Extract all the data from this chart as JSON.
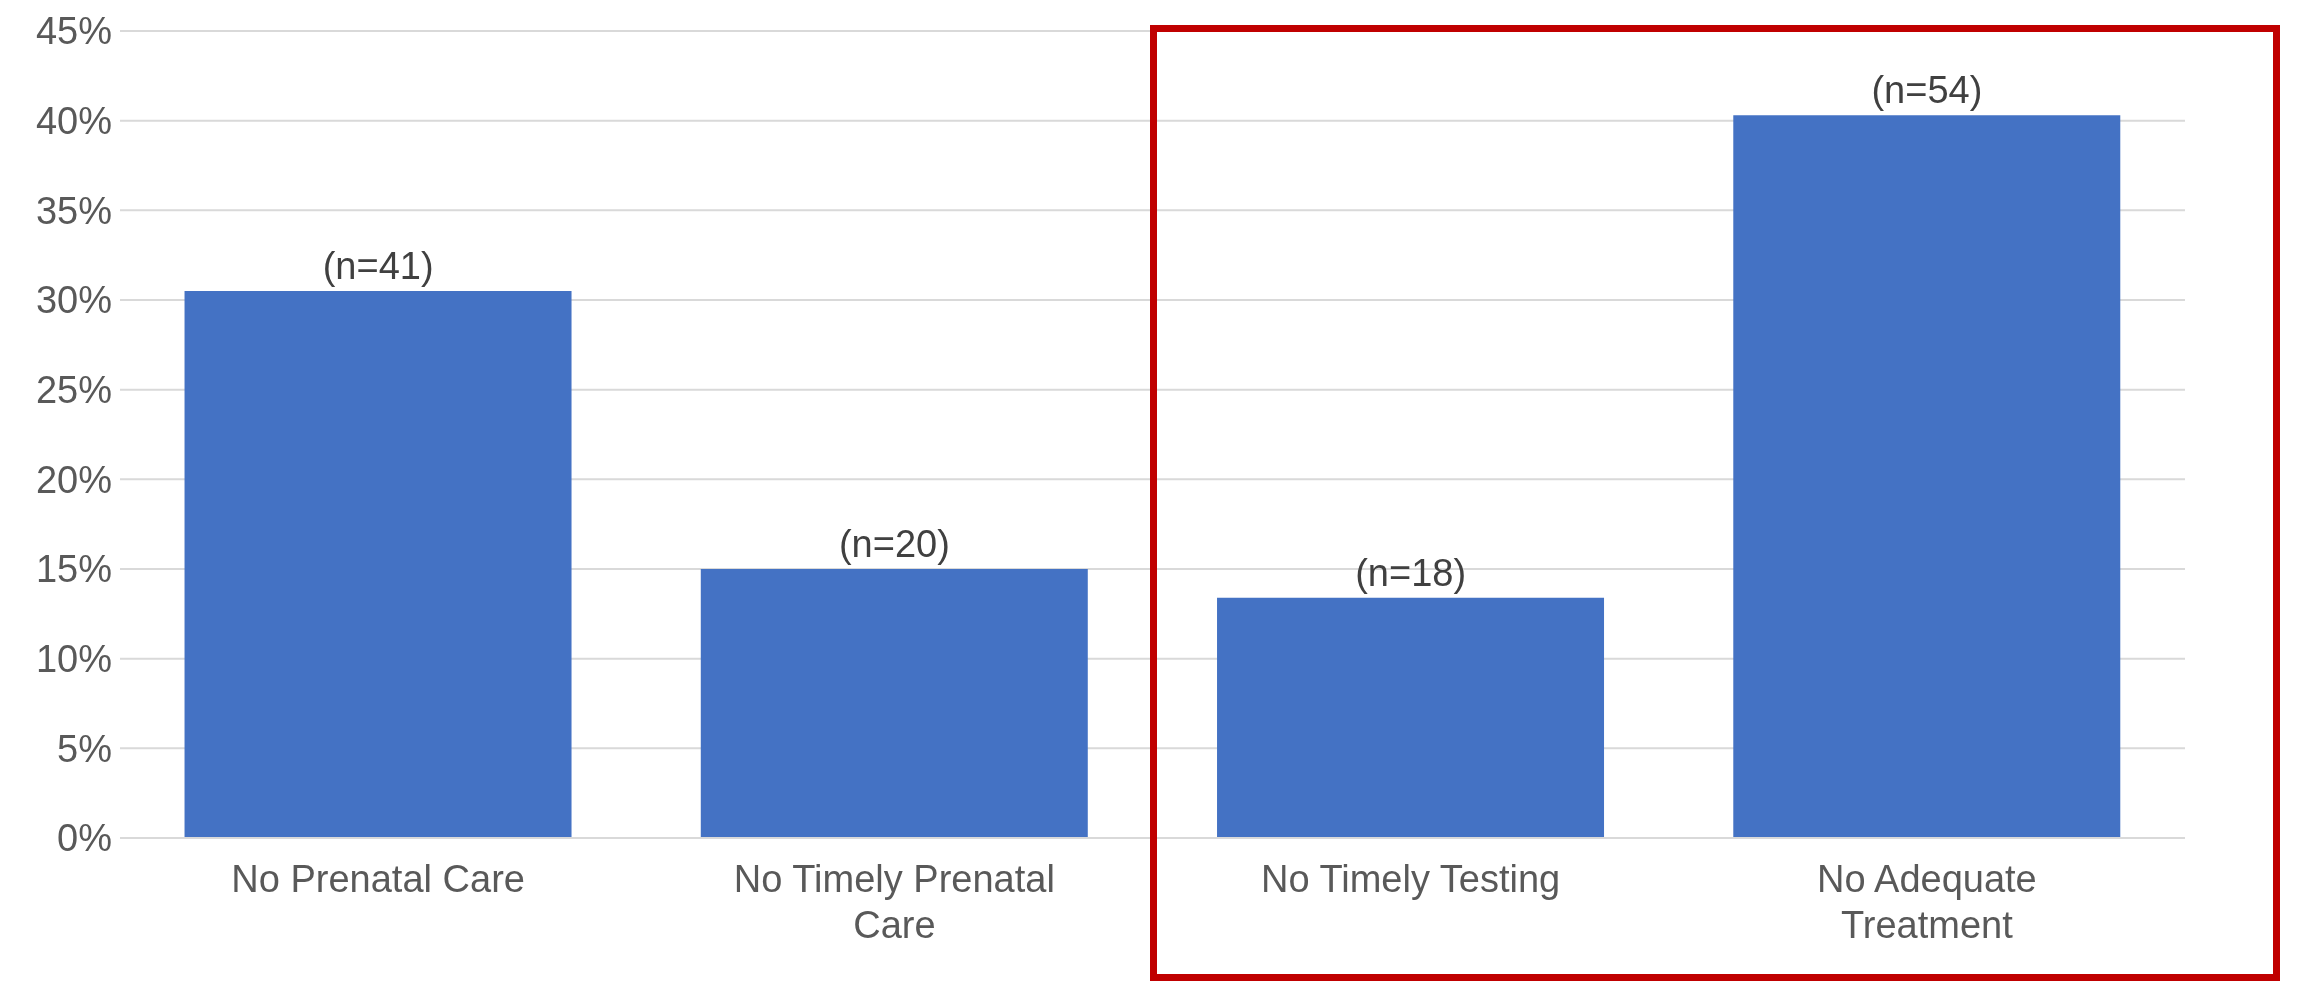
{
  "chart_data": {
    "type": "bar",
    "categories": [
      "No Prenatal Care",
      "No Timely Prenatal Care",
      "No Timely Testing",
      "No Adequate Treatment"
    ],
    "values": [
      30.5,
      15.0,
      13.4,
      40.3
    ],
    "color": "#4472c4",
    "annotations": [
      {
        "text": "(n=41)",
        "x": "No Prenatal Care",
        "y": 30.5
      },
      {
        "text": "(n=20)",
        "x": "No Timely Prenatal Care",
        "y": 15.0
      },
      {
        "text": "(n=18)",
        "x": "No Timely Testing",
        "y": 13.4
      },
      {
        "text": "(n=54)",
        "x": "No Adequate Treatment",
        "y": 40.3
      }
    ],
    "ylim": [
      0,
      45
    ],
    "yticks": [
      {
        "value": 0,
        "label": "0%"
      },
      {
        "value": 5,
        "label": "5%"
      },
      {
        "value": 10,
        "label": "10%"
      },
      {
        "value": 15,
        "label": "15%"
      },
      {
        "value": 20,
        "label": "20%"
      },
      {
        "value": 25,
        "label": "25%"
      },
      {
        "value": 30,
        "label": "30%"
      },
      {
        "value": 35,
        "label": "35%"
      },
      {
        "value": 40,
        "label": "40%"
      },
      {
        "value": 45,
        "label": "45%"
      }
    ],
    "grid": "y",
    "legend": false
  }
}
